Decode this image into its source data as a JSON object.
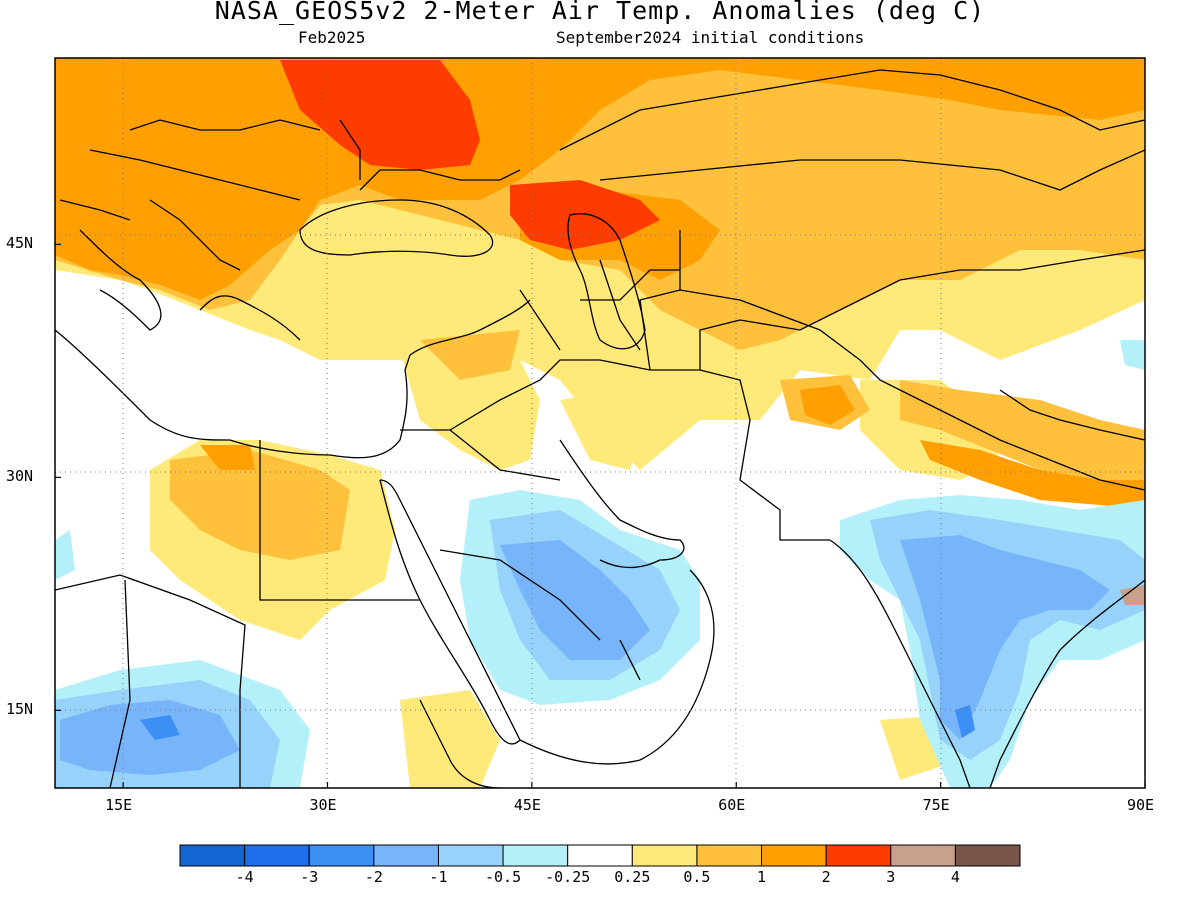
{
  "header": {
    "title": "NASA_GEOS5v2 2-Meter Air Temp. Anomalies (deg C)",
    "valid_month": "Feb2025",
    "initial_conditions": "September2024 initial conditions"
  },
  "map": {
    "lon_range": [
      10,
      90
    ],
    "lat_range": [
      10,
      57
    ],
    "lat_ticks": [
      {
        "value": 15,
        "label": "15N"
      },
      {
        "value": 30,
        "label": "30N"
      },
      {
        "value": 45,
        "label": "45N"
      }
    ],
    "lon_ticks": [
      {
        "value": 15,
        "label": "15E"
      },
      {
        "value": 30,
        "label": "30E"
      },
      {
        "value": 45,
        "label": "45E"
      },
      {
        "value": 60,
        "label": "60E"
      },
      {
        "value": 75,
        "label": "75E"
      },
      {
        "value": 90,
        "label": "90E"
      }
    ],
    "gridlines": "dotted"
  },
  "legend": {
    "colors": [
      "#1464d2",
      "#1e6eeb",
      "#3c8ff5",
      "#78b4fa",
      "#96d2fa",
      "#b4f0fa",
      "#ffffff",
      "#ffe978",
      "#ffc03c",
      "#ffa000",
      "#ff3c00",
      "#c8a08c",
      "#78554b"
    ],
    "labels": [
      "-4",
      "-3",
      "-2",
      "-1",
      "-0.5",
      "-0.25",
      "0.25",
      "0.5",
      "1",
      "2",
      "3",
      "4"
    ]
  }
}
